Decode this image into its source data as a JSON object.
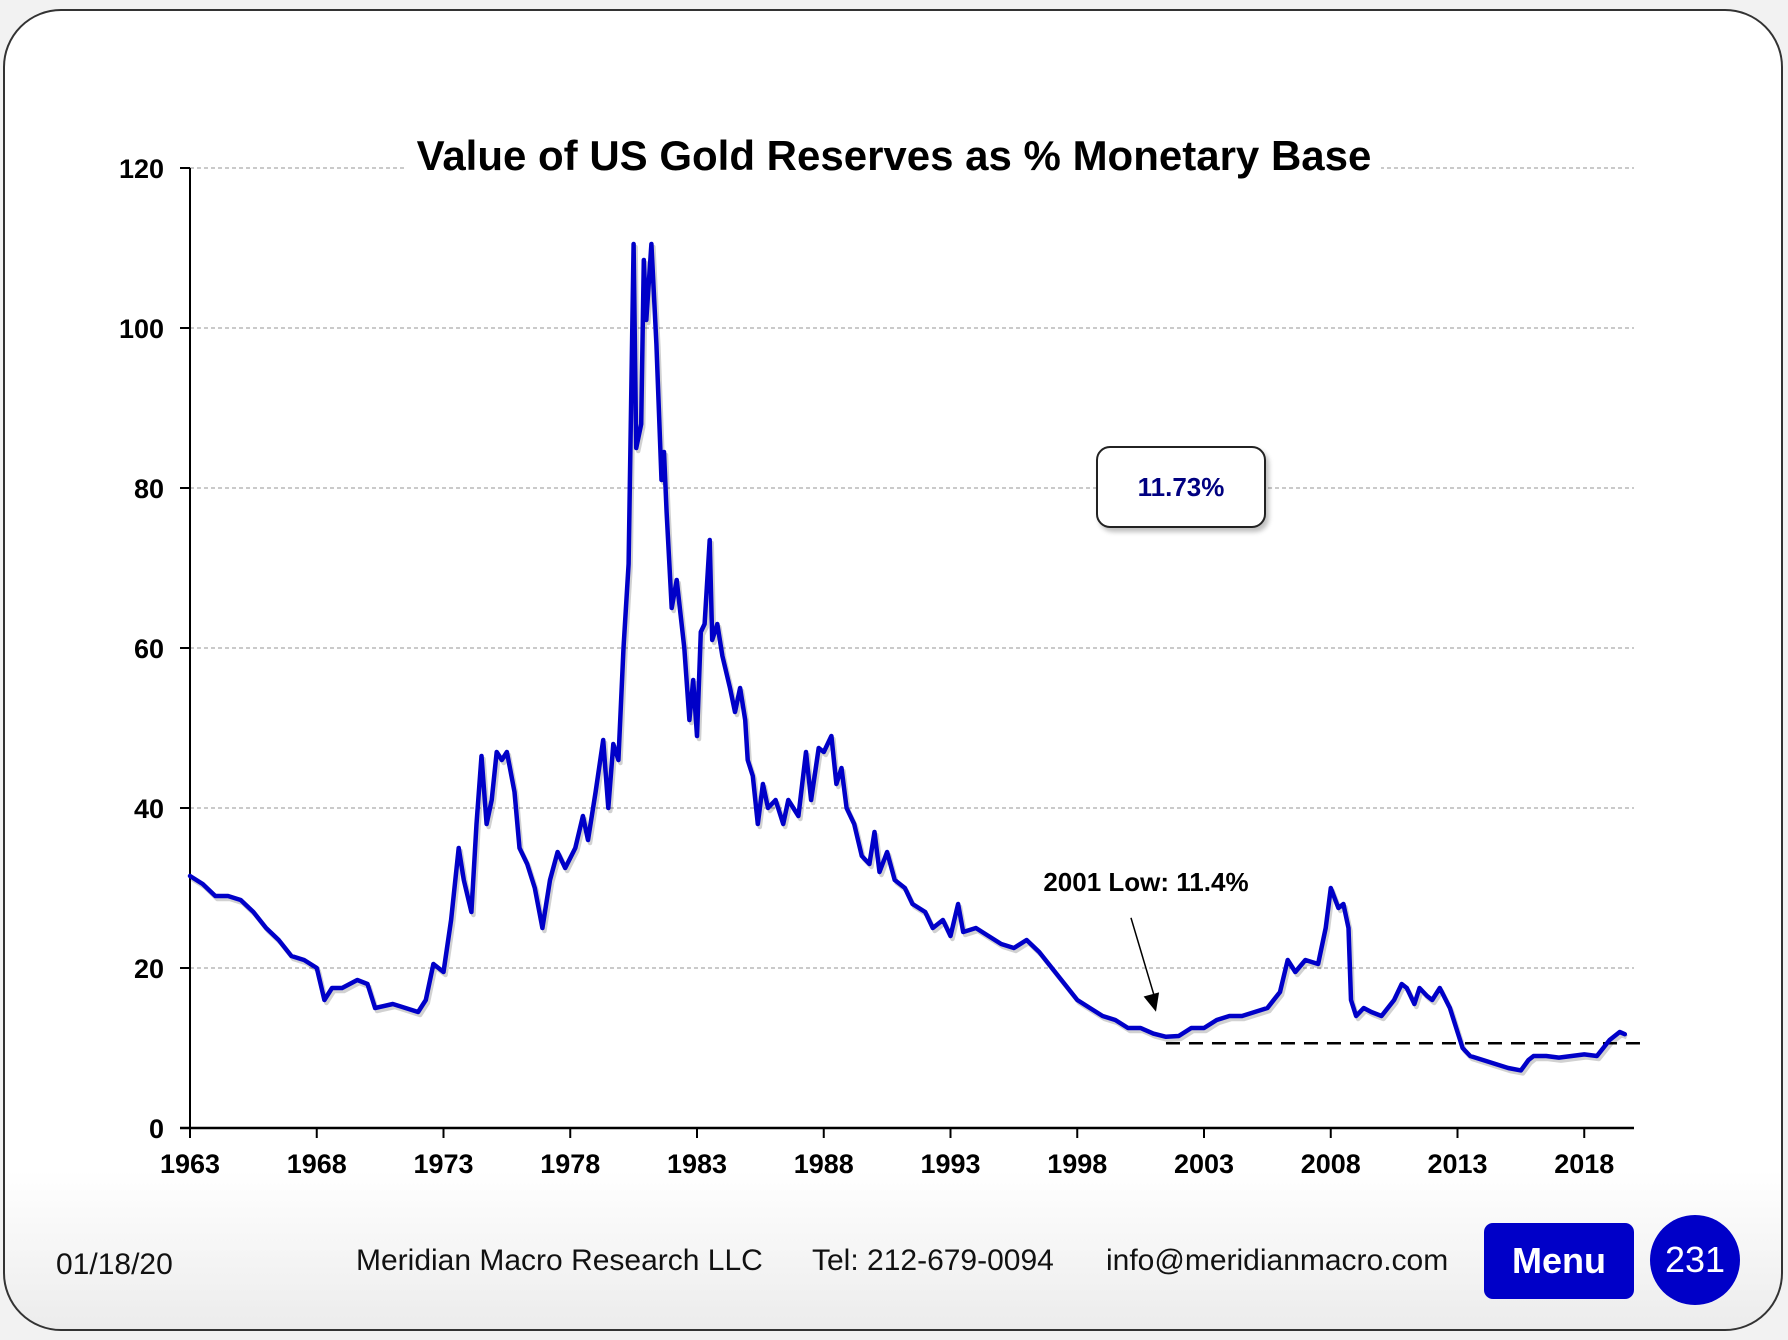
{
  "footer": {
    "date": "01/18/20",
    "company": "Meridian Macro Research  LLC",
    "phone": "Tel: 212-679-0094",
    "email": "info@meridianmacro.com",
    "menu_label": "Menu",
    "page_number": "231"
  },
  "colors": {
    "series": "#0000c8",
    "callout_text": "#000080",
    "button_bg": "#0000c8"
  },
  "chart_data": {
    "type": "line",
    "title": "Value of US Gold Reserves as % Monetary Base",
    "xlabel": "",
    "ylabel": "",
    "xlim": [
      1963,
      2020
    ],
    "ylim": [
      0,
      120
    ],
    "x_ticks": [
      1963,
      1968,
      1973,
      1978,
      1983,
      1988,
      1993,
      1998,
      2003,
      2008,
      2013,
      2018
    ],
    "y_ticks": [
      0,
      20,
      40,
      60,
      80,
      100,
      120
    ],
    "grid": "horizontal dashed",
    "legend": "none",
    "callout": "11.73%",
    "annotations": [
      {
        "text": "2001 Low: 11.4%",
        "x": 2001.5,
        "y": 11.4,
        "type": "arrow"
      },
      {
        "type": "reference-line",
        "y": 10.6,
        "x_start": 2001.5,
        "x_end": 2020.5,
        "style": "dashed"
      }
    ],
    "series": [
      {
        "name": "Gold Reserves % Monetary Base",
        "x": [
          1963.0,
          1963.5,
          1964.0,
          1964.5,
          1965.0,
          1965.5,
          1966.0,
          1966.5,
          1967.0,
          1967.5,
          1968.0,
          1968.3,
          1968.6,
          1969.0,
          1969.6,
          1970.0,
          1970.3,
          1971.0,
          1971.5,
          1972.0,
          1972.3,
          1972.6,
          1973.0,
          1973.3,
          1973.6,
          1973.8,
          1974.1,
          1974.3,
          1974.5,
          1974.7,
          1974.9,
          1975.1,
          1975.3,
          1975.5,
          1975.8,
          1976.0,
          1976.3,
          1976.6,
          1976.9,
          1977.2,
          1977.5,
          1977.8,
          1978.2,
          1978.5,
          1978.7,
          1979.0,
          1979.3,
          1979.5,
          1979.7,
          1979.9,
          1980.1,
          1980.3,
          1980.5,
          1980.6,
          1980.8,
          1980.9,
          1981.0,
          1981.2,
          1981.4,
          1981.6,
          1981.7,
          1981.8,
          1982.0,
          1982.2,
          1982.5,
          1982.7,
          1982.85,
          1983.0,
          1983.15,
          1983.3,
          1983.5,
          1983.6,
          1983.8,
          1984.0,
          1984.3,
          1984.5,
          1984.7,
          1984.9,
          1985.0,
          1985.2,
          1985.4,
          1985.6,
          1985.8,
          1986.1,
          1986.4,
          1986.6,
          1987.0,
          1987.3,
          1987.5,
          1987.8,
          1988.0,
          1988.3,
          1988.5,
          1988.7,
          1988.9,
          1989.2,
          1989.5,
          1989.8,
          1990.0,
          1990.2,
          1990.5,
          1990.8,
          1991.2,
          1991.5,
          1992.0,
          1992.3,
          1992.7,
          1993.0,
          1993.3,
          1993.5,
          1994.0,
          1994.5,
          1995.0,
          1995.5,
          1996.0,
          1996.5,
          1997.0,
          1997.5,
          1998.0,
          1998.5,
          1999.0,
          1999.5,
          2000.0,
          2000.5,
          2001.0,
          2001.5,
          2002.0,
          2002.5,
          2003.0,
          2003.5,
          2004.0,
          2004.5,
          2005.0,
          2005.5,
          2006.0,
          2006.3,
          2006.6,
          2007.0,
          2007.5,
          2007.8,
          2008.0,
          2008.3,
          2008.5,
          2008.7,
          2008.8,
          2009.0,
          2009.3,
          2009.6,
          2010.0,
          2010.5,
          2010.8,
          2011.0,
          2011.3,
          2011.5,
          2011.8,
          2012.0,
          2012.3,
          2012.7,
          2013.0,
          2013.2,
          2013.5,
          2014.0,
          2014.5,
          2015.0,
          2015.5,
          2015.8,
          2016.0,
          2016.5,
          2017.0,
          2017.5,
          2018.0,
          2018.5,
          2019.0,
          2019.4,
          2019.6
        ],
        "y": [
          31.5,
          30.5,
          29.0,
          29.0,
          28.5,
          27.0,
          25.0,
          23.5,
          21.5,
          21.0,
          20.0,
          16.0,
          17.5,
          17.5,
          18.5,
          18.0,
          15.0,
          15.5,
          15.0,
          14.5,
          16.0,
          20.5,
          19.5,
          26.0,
          35.0,
          31.0,
          27.0,
          38.0,
          46.5,
          38.0,
          41.0,
          47.0,
          46.0,
          47.0,
          42.0,
          35.0,
          33.0,
          30.0,
          25.0,
          31.0,
          34.5,
          32.5,
          35.0,
          39.0,
          36.0,
          42.0,
          48.5,
          40.0,
          48.0,
          46.0,
          60.0,
          70.5,
          110.5,
          85.0,
          88.0,
          108.5,
          101.0,
          110.5,
          98.0,
          81.0,
          84.5,
          77.0,
          65.0,
          68.5,
          60.0,
          51.0,
          56.0,
          49.0,
          62.0,
          63.0,
          73.5,
          61.0,
          63.0,
          59.0,
          55.0,
          52.0,
          55.0,
          51.0,
          46.0,
          44.0,
          38.0,
          43.0,
          40.0,
          41.0,
          38.0,
          41.0,
          39.0,
          47.0,
          41.0,
          47.5,
          47.0,
          49.0,
          43.0,
          45.0,
          40.0,
          38.0,
          34.0,
          33.0,
          37.0,
          32.0,
          34.5,
          31.0,
          30.0,
          28.0,
          27.0,
          25.0,
          26.0,
          24.0,
          28.0,
          24.5,
          25.0,
          24.0,
          23.0,
          22.5,
          23.5,
          22.0,
          20.0,
          18.0,
          16.0,
          15.0,
          14.0,
          13.5,
          12.5,
          12.5,
          11.8,
          11.4,
          11.5,
          12.5,
          12.5,
          13.5,
          14.0,
          14.0,
          14.5,
          15.0,
          17.0,
          21.0,
          19.5,
          21.0,
          20.5,
          25.0,
          30.0,
          27.5,
          28.0,
          25.0,
          16.0,
          14.0,
          15.0,
          14.5,
          14.0,
          16.0,
          18.0,
          17.5,
          15.5,
          17.5,
          16.5,
          16.0,
          17.5,
          15.0,
          12.0,
          10.0,
          9.0,
          8.5,
          8.0,
          7.5,
          7.2,
          8.5,
          9.0,
          9.0,
          8.8,
          9.0,
          9.2,
          9.0,
          11.0,
          12.0,
          11.73
        ]
      }
    ]
  }
}
